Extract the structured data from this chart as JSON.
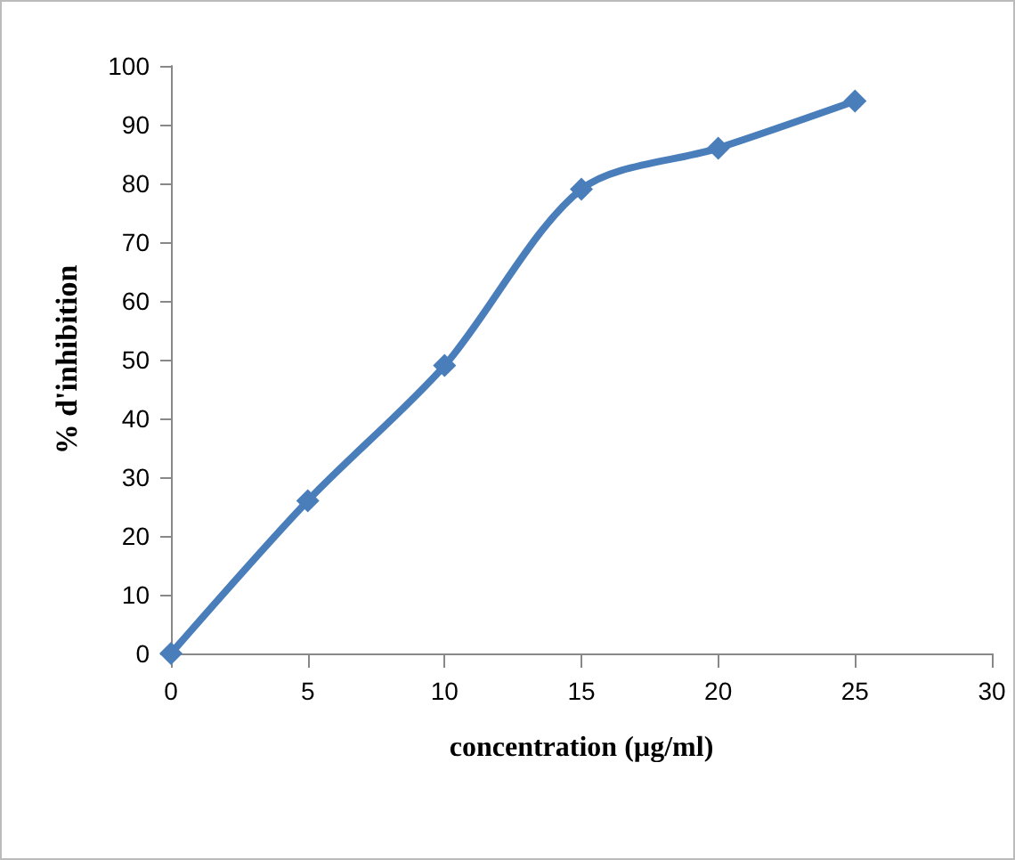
{
  "chart_data": {
    "type": "line",
    "xlabel": "concentration (µg/ml)",
    "ylabel": "% d'inhibition",
    "x": [
      0,
      5,
      10,
      15,
      20,
      25
    ],
    "series": [
      {
        "color": "#4a7ebb",
        "values": [
          0,
          26,
          49,
          79,
          86,
          94
        ]
      }
    ],
    "xlim": [
      0,
      30
    ],
    "xticks": [
      0,
      5,
      10,
      15,
      20,
      25,
      30
    ],
    "ylim": [
      0,
      100
    ],
    "yticks": [
      0,
      10,
      20,
      30,
      40,
      50,
      60,
      70,
      80,
      90,
      100
    ],
    "grid": false,
    "marker": "diamond",
    "line_style": "solid"
  }
}
